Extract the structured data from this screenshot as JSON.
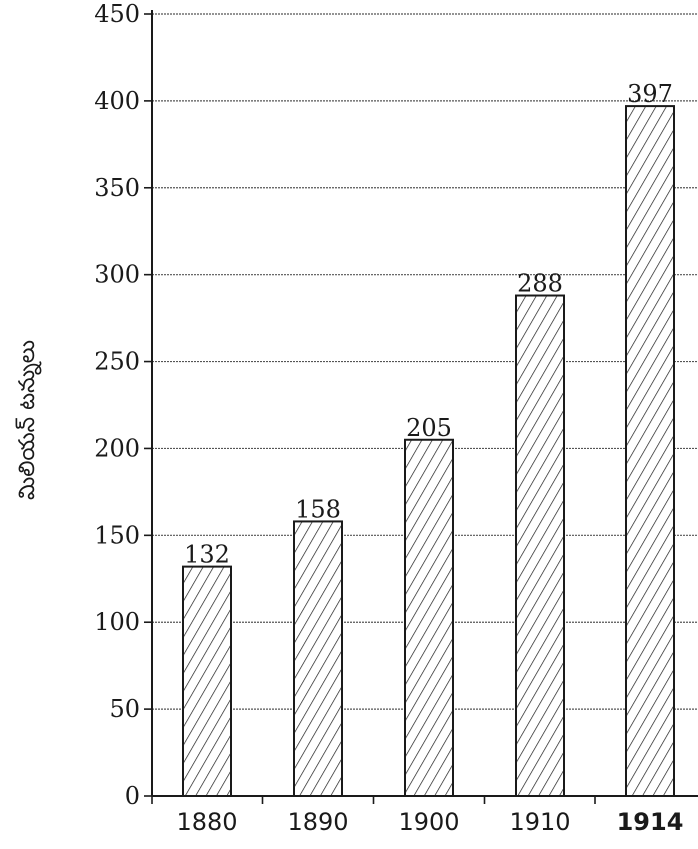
{
  "chart_data": {
    "type": "bar",
    "categories": [
      "1880",
      "1890",
      "1900",
      "1910",
      "1914"
    ],
    "values": [
      132,
      158,
      205,
      288,
      397
    ],
    "data_labels": [
      "132",
      "158",
      "205",
      "288",
      "397"
    ],
    "title": "",
    "xlabel": "",
    "ylabel": "మిలియన్ టన్నులు",
    "ylim": [
      0,
      450
    ],
    "yticks": [
      "0",
      "50",
      "100",
      "150",
      "200",
      "250",
      "300",
      "350",
      "400",
      "450"
    ],
    "grid": true,
    "bar_fill": "diagonal-hatch",
    "colors": {
      "ink": "#1a1a1a",
      "grid": "#555555"
    }
  }
}
